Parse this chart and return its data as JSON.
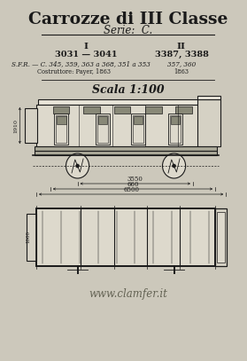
{
  "bg_color": "#ccc8bb",
  "title_line1": "Carrozze di III Classe",
  "title_line2": "Serie:  C.",
  "col1_header": "I",
  "col1_line1": "3031 — 3041",
  "col1_line2": "S.F.R. — C. 345, 359, 363 a 368, 351 a 353",
  "col1_line3": "Costruttore: Payer, 1863",
  "col2_header": "II",
  "col2_line1": "3387, 3388",
  "col2_line2": "357, 360",
  "col2_line3": "1863",
  "scale_text": "Scala 1:100",
  "dim1": "3550",
  "dim2": "660",
  "dim3": "6500",
  "height_dim": "1910",
  "width_dim": "1000",
  "watermark": "www.clamfer.it",
  "text_color": "#1a1a1a",
  "body_color": "#ddd9cc",
  "roof_color": "#e8e4d8",
  "dark_color": "#aaa898",
  "window_color": "#888877",
  "vest_color": "#d5d1c4"
}
